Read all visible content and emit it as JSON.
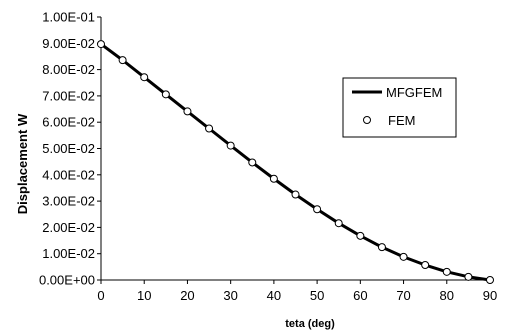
{
  "chart_data": {
    "type": "line",
    "title": "",
    "xlabel": "teta (deg)",
    "ylabel": "Displacement W",
    "xlim": [
      0,
      90
    ],
    "ylim": [
      0,
      0.1
    ],
    "x_ticks": [
      0,
      10,
      20,
      30,
      40,
      50,
      60,
      70,
      80,
      90
    ],
    "x_tick_labels": [
      "0",
      "10",
      "20",
      "30",
      "40",
      "50",
      "60",
      "70",
      "80",
      "90"
    ],
    "y_ticks": [
      0,
      0.01,
      0.02,
      0.03,
      0.04,
      0.05,
      0.06,
      0.07,
      0.08,
      0.09,
      0.1
    ],
    "y_tick_labels": [
      "0.00E+00",
      "1.00E-02",
      "2.00E-02",
      "3.00E-02",
      "4.00E-02",
      "5.00E-02",
      "6.00E-02",
      "7.00E-02",
      "8.00E-02",
      "9.00E-02",
      "1.00E-01"
    ],
    "grid": false,
    "legend_position": "upper-right",
    "series": [
      {
        "name": "MFGFEM",
        "style": "line",
        "color": "#000000",
        "x": [
          0,
          5,
          10,
          15,
          20,
          25,
          30,
          35,
          40,
          45,
          50,
          55,
          60,
          65,
          70,
          75,
          80,
          85,
          90
        ],
        "y": [
          0.0897,
          0.0836,
          0.0771,
          0.0706,
          0.0641,
          0.0576,
          0.0511,
          0.0447,
          0.0385,
          0.0325,
          0.0269,
          0.0216,
          0.0168,
          0.0125,
          0.0088,
          0.0057,
          0.0031,
          0.0012,
          0.0
        ]
      },
      {
        "name": "FEM",
        "style": "markers",
        "marker": "open-circle",
        "color": "#000000",
        "x": [
          0,
          5,
          10,
          15,
          20,
          25,
          30,
          35,
          40,
          45,
          50,
          55,
          60,
          65,
          70,
          75,
          80,
          85,
          90
        ],
        "y": [
          0.0897,
          0.0836,
          0.0771,
          0.0706,
          0.0641,
          0.0576,
          0.0511,
          0.0447,
          0.0385,
          0.0325,
          0.0269,
          0.0216,
          0.0168,
          0.0125,
          0.0088,
          0.0057,
          0.0031,
          0.0012,
          0.0
        ]
      }
    ]
  }
}
